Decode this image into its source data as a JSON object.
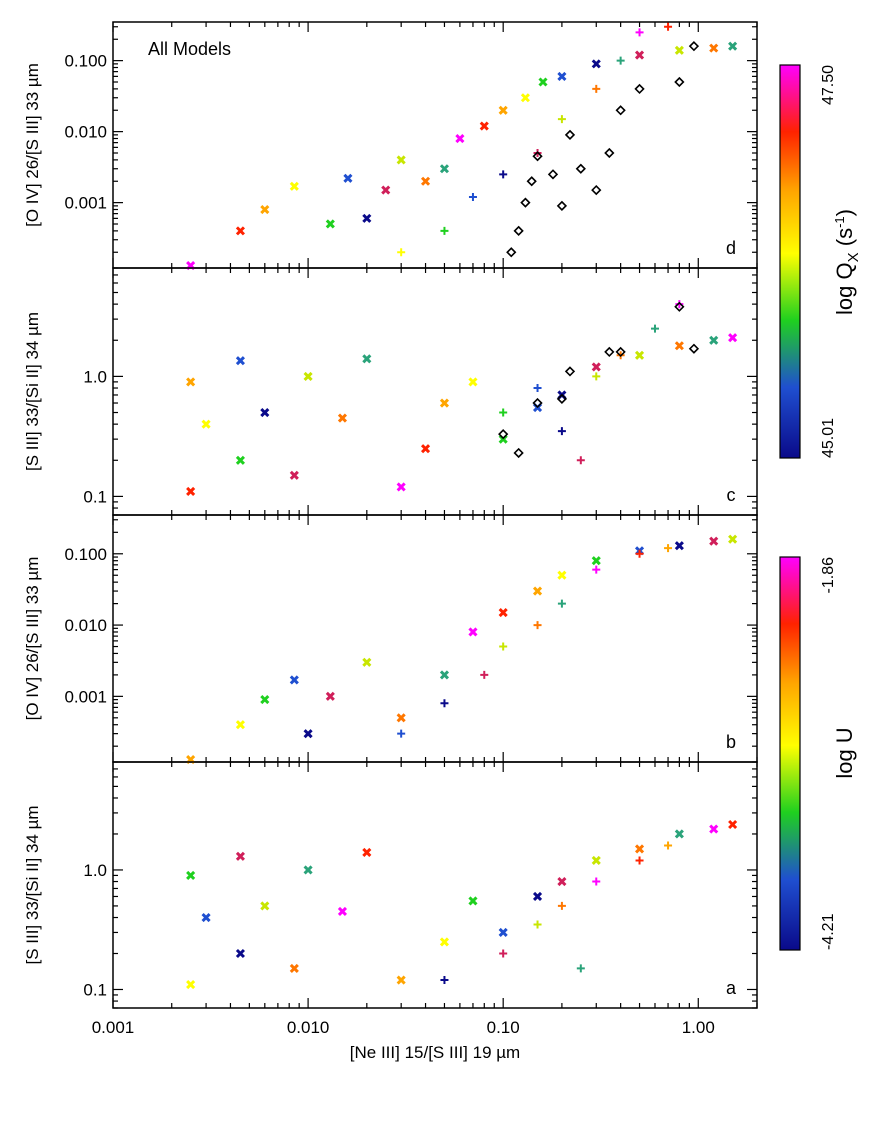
{
  "chart_data": [
    {
      "type": "scatter",
      "panel": "d",
      "annotation": "All Models",
      "xlabel": "[Ne III] 15/[S III] 19 µm",
      "ylabel": "[O IV] 26/[S III] 33 µm",
      "xscale": "log",
      "yscale": "log",
      "xlim": [
        0.001,
        2.0
      ],
      "ylim": [
        0.00012,
        0.35
      ],
      "xticks": [
        "0.001",
        "0.010",
        "0.10",
        "1.00"
      ],
      "yticks": [
        "0.001",
        "0.010",
        "0.100"
      ],
      "colorbar": {
        "title": "log Q_X (s^-1)",
        "min": "45.01",
        "max": "47.50"
      },
      "series": [
        {
          "marker": "cross-x",
          "points": [
            [
              0.0025,
              0.00013
            ],
            [
              0.0045,
              0.0004
            ],
            [
              0.006,
              0.0008
            ],
            [
              0.0085,
              0.0017
            ],
            [
              0.013,
              0.0005
            ],
            [
              0.016,
              0.0022
            ],
            [
              0.02,
              0.0006
            ],
            [
              0.025,
              0.0015
            ],
            [
              0.03,
              0.004
            ],
            [
              0.04,
              0.002
            ],
            [
              0.05,
              0.003
            ],
            [
              0.06,
              0.008
            ],
            [
              0.08,
              0.012
            ],
            [
              0.1,
              0.02
            ],
            [
              0.13,
              0.03
            ],
            [
              0.16,
              0.05
            ],
            [
              0.2,
              0.06
            ],
            [
              0.3,
              0.09
            ],
            [
              0.5,
              0.12
            ],
            [
              0.8,
              0.14
            ],
            [
              1.2,
              0.15
            ],
            [
              1.5,
              0.16
            ]
          ]
        },
        {
          "marker": "plus",
          "points": [
            [
              0.03,
              0.0002
            ],
            [
              0.05,
              0.0004
            ],
            [
              0.07,
              0.0012
            ],
            [
              0.1,
              0.0025
            ],
            [
              0.15,
              0.005
            ],
            [
              0.2,
              0.015
            ],
            [
              0.3,
              0.04
            ],
            [
              0.4,
              0.1
            ],
            [
              0.5,
              0.25
            ],
            [
              0.7,
              0.3
            ]
          ]
        },
        {
          "marker": "diamond",
          "name": "",
          "points": [
            [
              0.1,
              0.0001
            ],
            [
              0.11,
              0.0002
            ],
            [
              0.12,
              0.0004
            ],
            [
              0.13,
              0.001
            ],
            [
              0.14,
              0.002
            ],
            [
              0.15,
              0.0045
            ],
            [
              0.18,
              0.0025
            ],
            [
              0.2,
              0.0009
            ],
            [
              0.22,
              0.009
            ],
            [
              0.25,
              0.003
            ],
            [
              0.3,
              0.0015
            ],
            [
              0.35,
              0.005
            ],
            [
              0.4,
              0.02
            ],
            [
              0.5,
              0.04
            ],
            [
              0.8,
              0.05
            ],
            [
              0.95,
              0.16
            ]
          ]
        }
      ]
    },
    {
      "type": "scatter",
      "panel": "c",
      "xlabel": "[Ne III] 15/[S III] 19 µm",
      "ylabel": "[S III] 33/[Si II] 34 µm",
      "xscale": "log",
      "yscale": "log",
      "xlim": [
        0.001,
        2.0
      ],
      "ylim": [
        0.07,
        8.0
      ],
      "xticks": [
        "0.001",
        "0.010",
        "0.10",
        "1.00"
      ],
      "yticks": [
        "0.1",
        "1.0"
      ],
      "colorbar": {
        "title": "log Q_X (s^-1)",
        "min": "45.01",
        "max": "47.50"
      },
      "series": [
        {
          "marker": "cross-x",
          "points": [
            [
              0.0025,
              0.11
            ],
            [
              0.0025,
              0.9
            ],
            [
              0.003,
              0.4
            ],
            [
              0.0045,
              0.2
            ],
            [
              0.0045,
              1.35
            ],
            [
              0.006,
              0.5
            ],
            [
              0.0085,
              0.15
            ],
            [
              0.01,
              1.0
            ],
            [
              0.015,
              0.45
            ],
            [
              0.02,
              1.4
            ],
            [
              0.03,
              0.12
            ],
            [
              0.04,
              0.25
            ],
            [
              0.05,
              0.6
            ],
            [
              0.07,
              0.9
            ],
            [
              0.1,
              0.3
            ],
            [
              0.15,
              0.55
            ],
            [
              0.2,
              0.7
            ],
            [
              0.3,
              1.2
            ],
            [
              0.5,
              1.5
            ],
            [
              0.8,
              1.8
            ],
            [
              1.2,
              2.0
            ],
            [
              1.5,
              2.1
            ]
          ]
        },
        {
          "marker": "plus",
          "points": [
            [
              0.1,
              0.5
            ],
            [
              0.15,
              0.8
            ],
            [
              0.2,
              0.35
            ],
            [
              0.25,
              0.2
            ],
            [
              0.3,
              1.0
            ],
            [
              0.4,
              1.5
            ],
            [
              0.6,
              2.5
            ],
            [
              0.8,
              4.0
            ]
          ]
        },
        {
          "marker": "diamond",
          "name": "",
          "points": [
            [
              0.1,
              0.33
            ],
            [
              0.12,
              0.23
            ],
            [
              0.15,
              0.6
            ],
            [
              0.2,
              0.65
            ],
            [
              0.22,
              1.1
            ],
            [
              0.35,
              1.6
            ],
            [
              0.4,
              1.6
            ],
            [
              0.8,
              3.8
            ],
            [
              0.95,
              1.7
            ]
          ]
        }
      ]
    },
    {
      "type": "scatter",
      "panel": "b",
      "xlabel": "[Ne III] 15/[S III] 19 µm",
      "ylabel": "[O IV] 26/[S III] 33 µm",
      "xscale": "log",
      "yscale": "log",
      "xlim": [
        0.001,
        2.0
      ],
      "ylim": [
        0.00012,
        0.35
      ],
      "xticks": [
        "0.001",
        "0.010",
        "0.10",
        "1.00"
      ],
      "yticks": [
        "0.001",
        "0.010",
        "0.100"
      ],
      "colorbar": {
        "title": "log U",
        "min": "-4.21",
        "max": "-1.86"
      },
      "series": [
        {
          "marker": "cross-x",
          "points": [
            [
              0.0025,
              0.00013
            ],
            [
              0.0045,
              0.0004
            ],
            [
              0.006,
              0.0009
            ],
            [
              0.0085,
              0.0017
            ],
            [
              0.01,
              0.0003
            ],
            [
              0.013,
              0.001
            ],
            [
              0.02,
              0.003
            ],
            [
              0.03,
              0.0005
            ],
            [
              0.05,
              0.002
            ],
            [
              0.07,
              0.008
            ],
            [
              0.1,
              0.015
            ],
            [
              0.15,
              0.03
            ],
            [
              0.2,
              0.05
            ],
            [
              0.3,
              0.08
            ],
            [
              0.5,
              0.11
            ],
            [
              0.8,
              0.13
            ],
            [
              1.2,
              0.15
            ],
            [
              1.5,
              0.16
            ]
          ]
        },
        {
          "marker": "plus",
          "points": [
            [
              0.03,
              0.0003
            ],
            [
              0.05,
              0.0008
            ],
            [
              0.08,
              0.002
            ],
            [
              0.1,
              0.005
            ],
            [
              0.15,
              0.01
            ],
            [
              0.2,
              0.02
            ],
            [
              0.3,
              0.06
            ],
            [
              0.5,
              0.1
            ],
            [
              0.7,
              0.12
            ]
          ]
        }
      ]
    },
    {
      "type": "scatter",
      "panel": "a",
      "xlabel": "[Ne III] 15/[S III] 19 µm",
      "ylabel": "[S III] 33/[Si II] 34 µm",
      "xscale": "log",
      "yscale": "log",
      "xlim": [
        0.001,
        2.0
      ],
      "ylim": [
        0.07,
        8.0
      ],
      "xticks": [
        "0.001",
        "0.010",
        "0.10",
        "1.00"
      ],
      "yticks": [
        "0.1",
        "1.0"
      ],
      "colorbar": {
        "title": "log U",
        "min": "-4.21",
        "max": "-1.86"
      },
      "series": [
        {
          "marker": "cross-x",
          "points": [
            [
              0.0025,
              0.11
            ],
            [
              0.0025,
              0.9
            ],
            [
              0.003,
              0.4
            ],
            [
              0.0045,
              0.2
            ],
            [
              0.0045,
              1.3
            ],
            [
              0.006,
              0.5
            ],
            [
              0.0085,
              0.15
            ],
            [
              0.01,
              1.0
            ],
            [
              0.015,
              0.45
            ],
            [
              0.02,
              1.4
            ],
            [
              0.03,
              0.12
            ],
            [
              0.05,
              0.25
            ],
            [
              0.07,
              0.55
            ],
            [
              0.1,
              0.3
            ],
            [
              0.15,
              0.6
            ],
            [
              0.2,
              0.8
            ],
            [
              0.3,
              1.2
            ],
            [
              0.5,
              1.5
            ],
            [
              0.8,
              2.0
            ],
            [
              1.2,
              2.2
            ],
            [
              1.5,
              2.4
            ]
          ]
        },
        {
          "marker": "plus",
          "points": [
            [
              0.05,
              0.12
            ],
            [
              0.1,
              0.2
            ],
            [
              0.15,
              0.35
            ],
            [
              0.2,
              0.5
            ],
            [
              0.25,
              0.15
            ],
            [
              0.3,
              0.8
            ],
            [
              0.5,
              1.2
            ],
            [
              0.7,
              1.6
            ]
          ]
        }
      ]
    }
  ]
}
